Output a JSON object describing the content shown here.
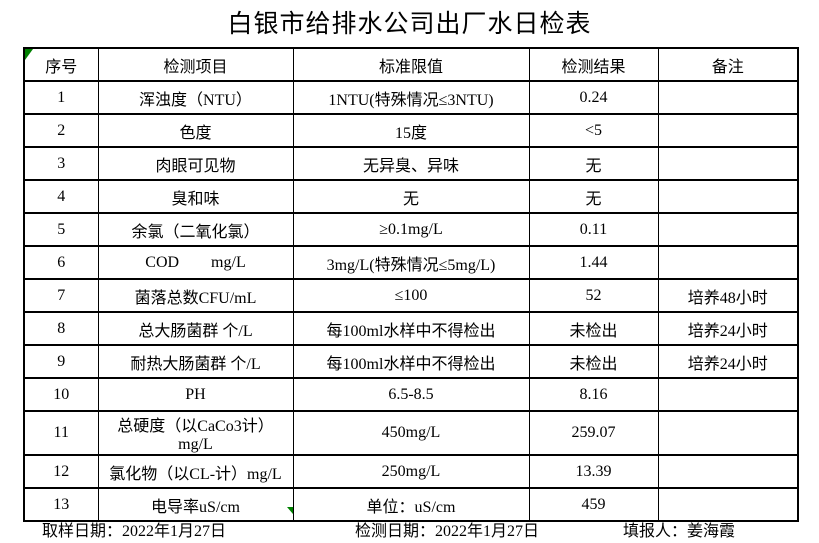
{
  "title": "白银市给排水公司出厂水日检表",
  "colors": {
    "background": "#ffffff",
    "text": "#000000",
    "border": "#000000",
    "marker_green": "#008000"
  },
  "table": {
    "headers": [
      "序号",
      "检测项目",
      "标准限值",
      "检测结果",
      "备注"
    ],
    "rows": [
      [
        "1",
        "浑浊度（NTU）",
        "1NTU(特殊情况≤3NTU)",
        "0.24",
        ""
      ],
      [
        "2",
        "色度",
        "15度",
        "<5",
        ""
      ],
      [
        "3",
        "肉眼可见物",
        "无异臭、异味",
        "无",
        ""
      ],
      [
        "4",
        "臭和味",
        "无",
        "无",
        ""
      ],
      [
        "5",
        "余氯（二氧化氯）",
        "≥0.1mg/L",
        "0.11",
        ""
      ],
      [
        "6",
        "COD        mg/L",
        "3mg/L(特殊情况≤5mg/L)",
        "1.44",
        ""
      ],
      [
        "7",
        "菌落总数CFU/mL",
        "≤100",
        "52",
        "培养48小时"
      ],
      [
        "8",
        "总大肠菌群 个/L",
        "每100ml水样中不得检出",
        "未检出",
        "培养24小时"
      ],
      [
        "9",
        "耐热大肠菌群 个/L",
        "每100ml水样中不得检出",
        "未检出",
        "培养24小时"
      ],
      [
        "10",
        "PH",
        "6.5-8.5",
        "8.16",
        ""
      ],
      [
        "11",
        "总硬度（以CaCo3计）mg/L",
        "450mg/L",
        "259.07",
        ""
      ],
      [
        "12",
        "氯化物（以CL-计）mg/L",
        "250mg/L",
        "13.39",
        ""
      ],
      [
        "13",
        "电导率uS/cm",
        "单位：uS/cm",
        "459",
        ""
      ]
    ]
  },
  "footer": {
    "sampling": {
      "label": "取样日期：",
      "value": "2022年1月27日"
    },
    "testing": {
      "label": "检测日期：",
      "value": "2022年1月27日"
    },
    "reporter": {
      "label": "填报人：",
      "value": "姜海霞"
    }
  }
}
